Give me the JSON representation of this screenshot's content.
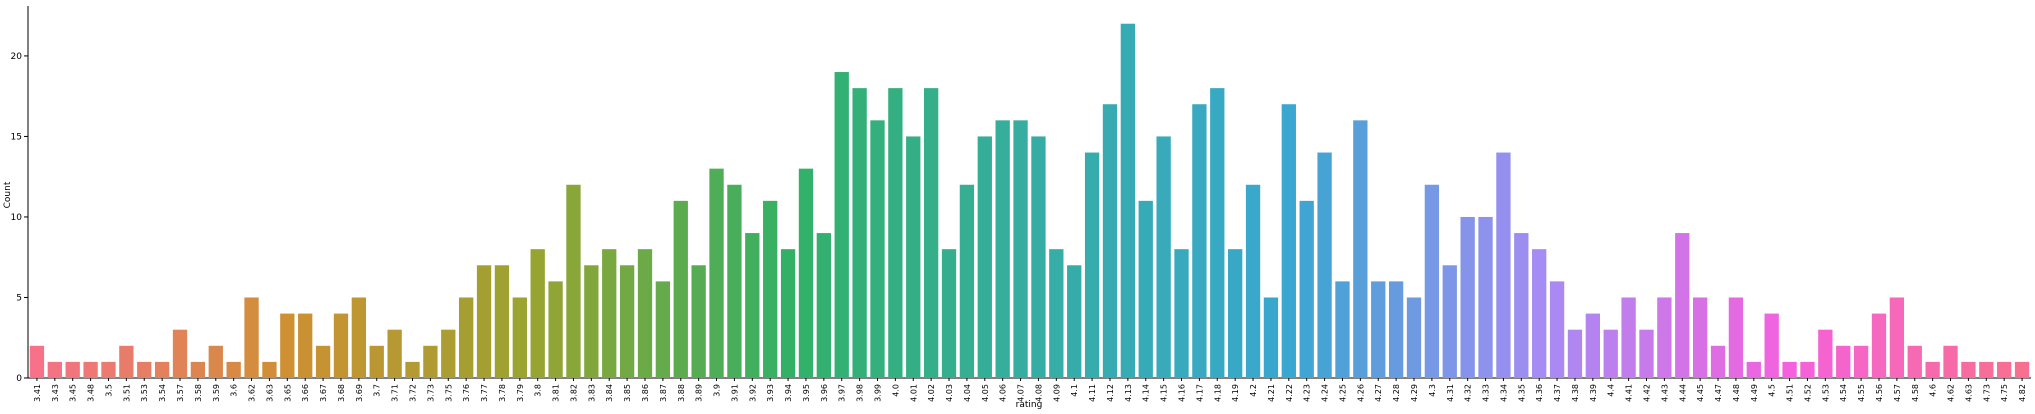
{
  "chart_data": {
    "type": "bar",
    "x_label": "rating",
    "y_label": "Count",
    "categories": [
      "3.41",
      "3.43",
      "3.45",
      "3.48",
      "3.5",
      "3.51",
      "3.53",
      "3.54",
      "3.57",
      "3.58",
      "3.59",
      "3.6",
      "3.62",
      "3.63",
      "3.65",
      "3.66",
      "3.67",
      "3.68",
      "3.69",
      "3.7",
      "3.71",
      "3.72",
      "3.73",
      "3.75",
      "3.76",
      "3.77",
      "3.78",
      "3.79",
      "3.8",
      "3.81",
      "3.82",
      "3.83",
      "3.84",
      "3.85",
      "3.86",
      "3.87",
      "3.88",
      "3.89",
      "3.9",
      "3.91",
      "3.92",
      "3.93",
      "3.94",
      "3.95",
      "3.96",
      "3.97",
      "3.98",
      "3.99",
      "4.0",
      "4.01",
      "4.02",
      "4.03",
      "4.04",
      "4.05",
      "4.06",
      "4.07",
      "4.08",
      "4.09",
      "4.1",
      "4.11",
      "4.12",
      "4.13",
      "4.14",
      "4.15",
      "4.16",
      "4.17",
      "4.18",
      "4.19",
      "4.2",
      "4.21",
      "4.22",
      "4.23",
      "4.24",
      "4.25",
      "4.26",
      "4.27",
      "4.28",
      "4.29",
      "4.3",
      "4.31",
      "4.32",
      "4.33",
      "4.34",
      "4.35",
      "4.36",
      "4.37",
      "4.38",
      "4.39",
      "4.4",
      "4.41",
      "4.42",
      "4.43",
      "4.44",
      "4.45",
      "4.47",
      "4.48",
      "4.49",
      "4.5",
      "4.51",
      "4.52",
      "4.53",
      "4.54",
      "4.55",
      "4.56",
      "4.57",
      "4.58",
      "4.6",
      "4.62",
      "4.63",
      "4.73",
      "4.75",
      "4.82"
    ],
    "values": [
      2,
      1,
      1,
      1,
      1,
      2,
      1,
      1,
      3,
      1,
      2,
      1,
      5,
      1,
      4,
      4,
      2,
      4,
      5,
      2,
      3,
      1,
      2,
      3,
      5,
      7,
      7,
      5,
      8,
      6,
      12,
      7,
      8,
      7,
      8,
      6,
      11,
      7,
      13,
      12,
      9,
      11,
      8,
      13,
      9,
      19,
      18,
      16,
      18,
      15,
      18,
      8,
      12,
      15,
      16,
      16,
      15,
      8,
      7,
      14,
      17,
      22,
      11,
      15,
      8,
      17,
      18,
      8,
      12,
      5,
      17,
      11,
      14,
      6,
      16,
      6,
      6,
      5,
      12,
      7,
      10,
      10,
      14,
      9,
      8,
      6,
      3,
      4,
      3,
      5,
      3,
      5,
      9,
      5,
      2,
      5,
      1,
      4,
      1,
      1,
      3,
      2,
      2,
      4,
      5,
      2,
      1,
      2,
      1,
      1,
      1,
      1
    ],
    "palette": [
      "#f77189",
      "#ce9032",
      "#97a431",
      "#32b166",
      "#36ada4",
      "#39a7d0",
      "#a48cf4",
      "#f561dd",
      "#f77189"
    ],
    "ylim": [
      0,
      23.1
    ],
    "yticks": [
      0,
      5,
      10,
      15,
      20
    ]
  }
}
